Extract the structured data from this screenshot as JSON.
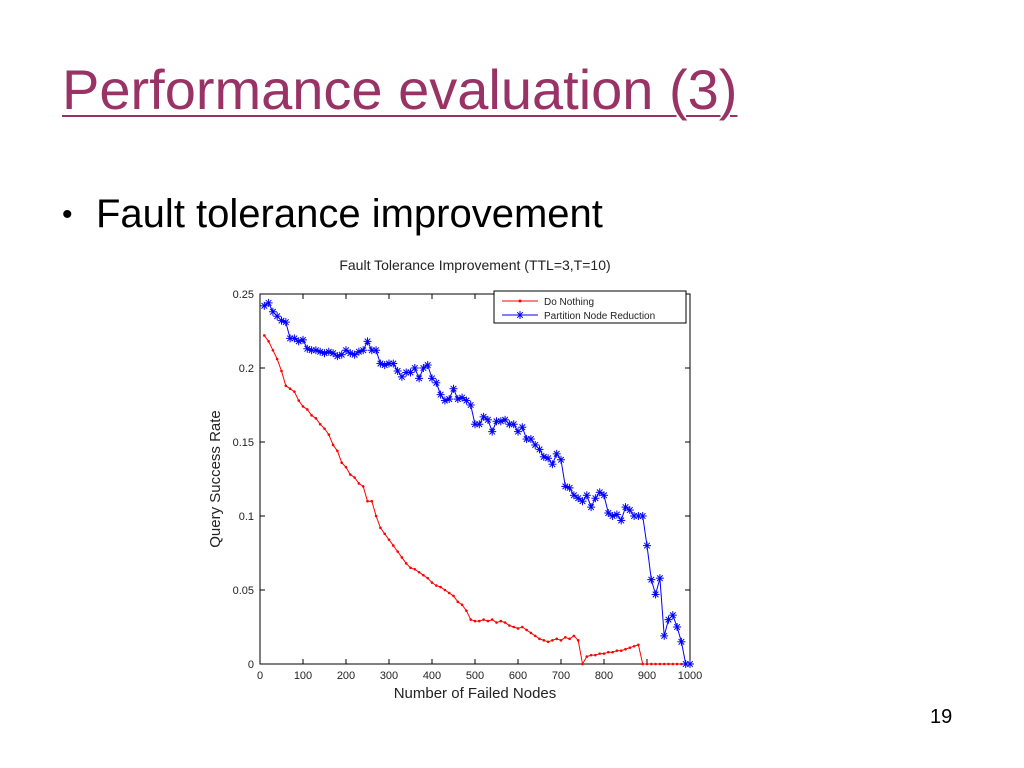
{
  "slide": {
    "title": "Performance evaluation (3)",
    "bullet": "Fault tolerance improvement",
    "page_number": "19",
    "title_color": "#993366"
  },
  "chart_data": {
    "type": "line",
    "title": "Fault Tolerance Improvement (TTL=3,T=10)",
    "xlabel": "Number of Failed Nodes",
    "ylabel": "Query Success Rate",
    "xlim": [
      0,
      1000
    ],
    "ylim": [
      0,
      0.25
    ],
    "xticks": [
      "0",
      "100",
      "200",
      "300",
      "400",
      "500",
      "600",
      "700",
      "800",
      "900",
      "1000"
    ],
    "yticks": [
      "0",
      "0.05",
      "0.1",
      "0.15",
      "0.2",
      "0.25"
    ],
    "legend_position": "top-right",
    "grid": false,
    "series": [
      {
        "name": "Do Nothing",
        "color": "#ff0000",
        "marker": "dot",
        "x": [
          10,
          20,
          30,
          40,
          50,
          60,
          70,
          80,
          90,
          100,
          110,
          120,
          130,
          140,
          150,
          160,
          170,
          180,
          190,
          200,
          210,
          220,
          230,
          240,
          250,
          260,
          270,
          280,
          290,
          300,
          310,
          320,
          330,
          340,
          350,
          360,
          370,
          380,
          390,
          400,
          410,
          420,
          430,
          440,
          450,
          460,
          470,
          480,
          490,
          500,
          510,
          520,
          530,
          540,
          550,
          560,
          570,
          580,
          590,
          600,
          610,
          620,
          630,
          640,
          650,
          660,
          670,
          680,
          690,
          700,
          710,
          720,
          730,
          740,
          750,
          760,
          770,
          780,
          790,
          800,
          810,
          820,
          830,
          840,
          850,
          860,
          870,
          880,
          890,
          900,
          910,
          920,
          930,
          940,
          950,
          960,
          970,
          980,
          990,
          1000
        ],
        "y": [
          0.222,
          0.218,
          0.212,
          0.206,
          0.198,
          0.188,
          0.186,
          0.184,
          0.178,
          0.174,
          0.172,
          0.168,
          0.166,
          0.162,
          0.159,
          0.155,
          0.148,
          0.144,
          0.136,
          0.133,
          0.128,
          0.126,
          0.122,
          0.12,
          0.11,
          0.11,
          0.1,
          0.092,
          0.088,
          0.084,
          0.08,
          0.076,
          0.072,
          0.068,
          0.065,
          0.064,
          0.062,
          0.06,
          0.058,
          0.055,
          0.053,
          0.052,
          0.05,
          0.048,
          0.046,
          0.042,
          0.04,
          0.036,
          0.03,
          0.029,
          0.029,
          0.03,
          0.029,
          0.03,
          0.028,
          0.029,
          0.028,
          0.026,
          0.025,
          0.024,
          0.025,
          0.023,
          0.021,
          0.019,
          0.017,
          0.016,
          0.015,
          0.016,
          0.017,
          0.016,
          0.018,
          0.017,
          0.019,
          0.016,
          0.0,
          0.005,
          0.006,
          0.006,
          0.007,
          0.007,
          0.008,
          0.008,
          0.009,
          0.009,
          0.01,
          0.011,
          0.012,
          0.013,
          0.0,
          0.0,
          0.0,
          0.0,
          0.0,
          0.0,
          0.0,
          0.0,
          0.0,
          0.0,
          0.0,
          0.0
        ]
      },
      {
        "name": "Partition Node Reduction",
        "color": "#0000ff",
        "marker": "asterisk",
        "x": [
          10,
          20,
          30,
          40,
          50,
          60,
          70,
          80,
          90,
          100,
          110,
          120,
          130,
          140,
          150,
          160,
          170,
          180,
          190,
          200,
          210,
          220,
          230,
          240,
          250,
          260,
          270,
          280,
          290,
          300,
          310,
          320,
          330,
          340,
          350,
          360,
          370,
          380,
          390,
          400,
          410,
          420,
          430,
          440,
          450,
          460,
          470,
          480,
          490,
          500,
          510,
          520,
          530,
          540,
          550,
          560,
          570,
          580,
          590,
          600,
          610,
          620,
          630,
          640,
          650,
          660,
          670,
          680,
          690,
          700,
          710,
          720,
          730,
          740,
          750,
          760,
          770,
          780,
          790,
          800,
          810,
          820,
          830,
          840,
          850,
          860,
          870,
          880,
          890,
          900,
          910,
          920,
          930,
          940,
          950,
          960,
          970,
          980,
          990,
          1000
        ],
        "y": [
          0.242,
          0.244,
          0.238,
          0.235,
          0.232,
          0.231,
          0.22,
          0.22,
          0.218,
          0.219,
          0.213,
          0.212,
          0.212,
          0.211,
          0.21,
          0.211,
          0.21,
          0.208,
          0.209,
          0.212,
          0.21,
          0.209,
          0.211,
          0.212,
          0.218,
          0.212,
          0.212,
          0.203,
          0.202,
          0.203,
          0.203,
          0.198,
          0.194,
          0.197,
          0.197,
          0.2,
          0.193,
          0.2,
          0.202,
          0.193,
          0.19,
          0.182,
          0.178,
          0.179,
          0.186,
          0.179,
          0.18,
          0.178,
          0.175,
          0.162,
          0.162,
          0.167,
          0.165,
          0.157,
          0.164,
          0.164,
          0.165,
          0.162,
          0.162,
          0.157,
          0.16,
          0.152,
          0.152,
          0.148,
          0.145,
          0.14,
          0.139,
          0.135,
          0.142,
          0.138,
          0.12,
          0.119,
          0.114,
          0.112,
          0.11,
          0.114,
          0.106,
          0.112,
          0.116,
          0.114,
          0.102,
          0.1,
          0.101,
          0.097,
          0.106,
          0.104,
          0.1,
          0.1,
          0.1,
          0.08,
          0.057,
          0.047,
          0.058,
          0.019,
          0.03,
          0.033,
          0.025,
          0.015,
          0.0,
          0.0
        ]
      }
    ]
  }
}
